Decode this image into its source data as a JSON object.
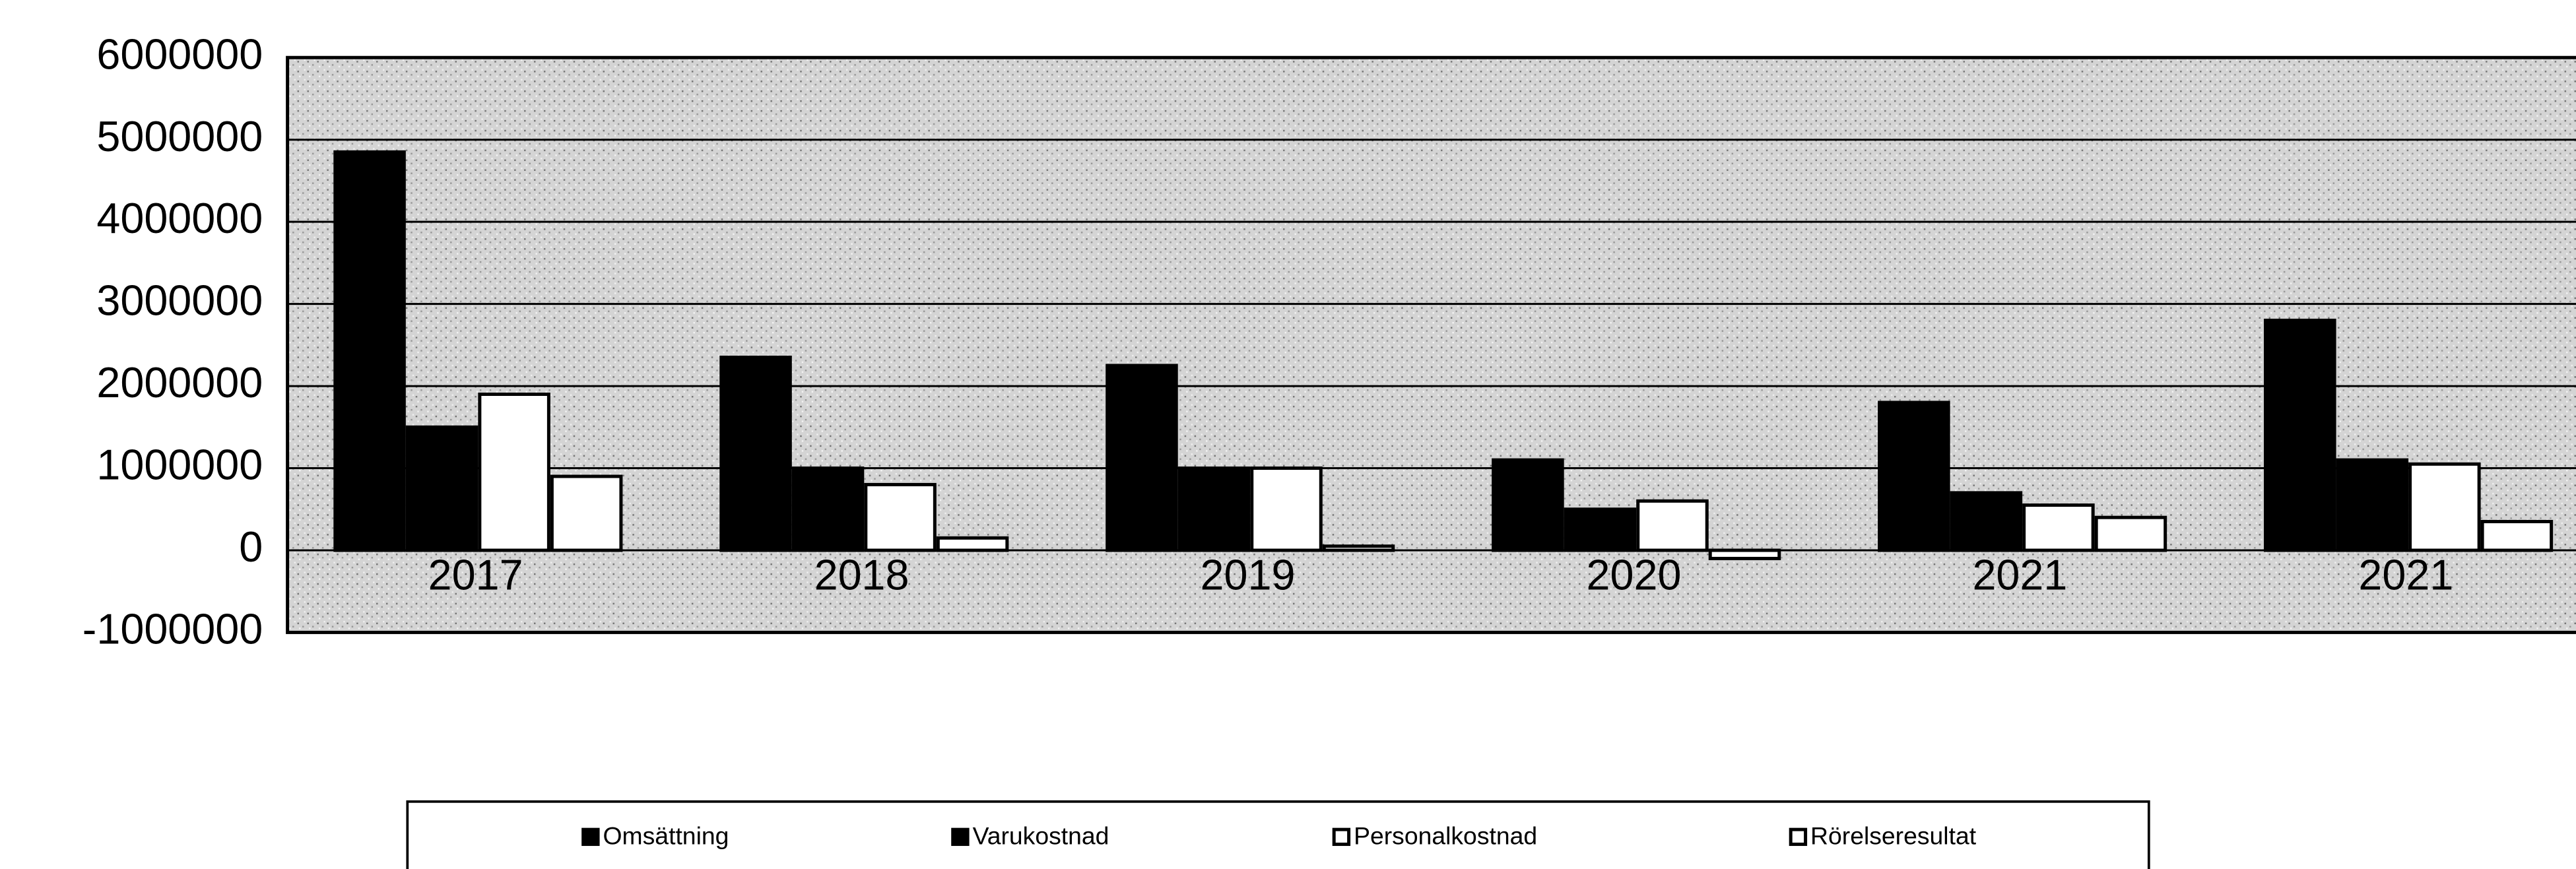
{
  "chart_data": {
    "type": "bar",
    "categories": [
      "2017",
      "2018",
      "2019",
      "2020",
      "2021",
      "2021"
    ],
    "series": [
      {
        "name": "Omsättning",
        "color": "#000000",
        "values": [
          4850000,
          2350000,
          2250000,
          1100000,
          1800000,
          2800000
        ]
      },
      {
        "name": "Varukostnad",
        "color": "#000000",
        "values": [
          1500000,
          1000000,
          1000000,
          500000,
          700000,
          1100000
        ]
      },
      {
        "name": "Personalkostnad",
        "color": "#ffffff",
        "values": [
          1900000,
          800000,
          1000000,
          600000,
          550000,
          1050000
        ]
      },
      {
        "name": "Rörelseresultat",
        "color": "#ffffff",
        "values": [
          900000,
          150000,
          50000,
          -100000,
          400000,
          350000
        ]
      }
    ],
    "ylim": [
      -1000000,
      6000000
    ],
    "yticks": [
      -1000000,
      0,
      1000000,
      2000000,
      3000000,
      4000000,
      5000000,
      6000000
    ],
    "grid": true,
    "legend": "bottom"
  }
}
